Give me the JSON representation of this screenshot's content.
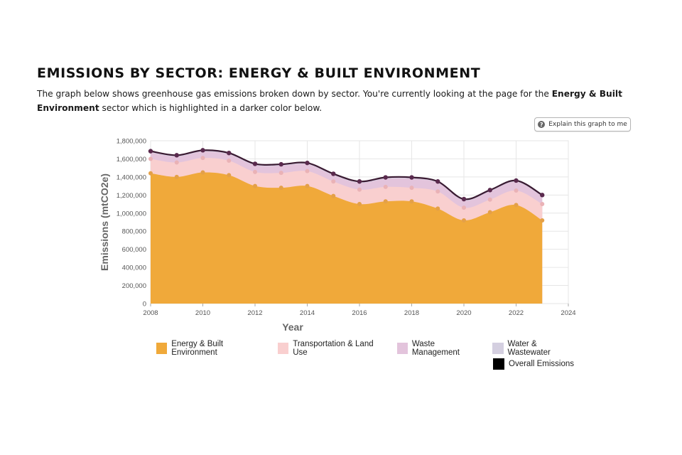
{
  "header": {
    "title": "EMISSIONS BY SECTOR: ENERGY & BUILT ENVIRONMENT",
    "desc_pre": "The graph below shows greenhouse gas emissions broken down by sector. You're currently looking at the page for the ",
    "desc_bold": "Energy & Built Environment",
    "desc_post": " sector which is highlighted in a darker color below."
  },
  "explain_button": {
    "label": "Explain this graph to me",
    "icon": "question-icon"
  },
  "chart_data": {
    "type": "area",
    "stacked": true,
    "xlabel": "Year",
    "ylabel": "Emissions (mtCO2e)",
    "xlim": [
      2008,
      2024
    ],
    "ylim": [
      0,
      1800000
    ],
    "xticks": [
      2008,
      2010,
      2012,
      2014,
      2016,
      2018,
      2020,
      2022,
      2024
    ],
    "yticks": [
      0,
      200000,
      400000,
      600000,
      800000,
      1000000,
      1200000,
      1400000,
      1600000,
      1800000
    ],
    "ytick_labels": [
      "0",
      "200,000",
      "400,000",
      "600,000",
      "800,000",
      "1,000,000",
      "1,200,000",
      "1,400,000",
      "1,600,000",
      "1,800,000"
    ],
    "grid": true,
    "x": [
      2008,
      2009,
      2010,
      2011,
      2012,
      2013,
      2014,
      2015,
      2016,
      2017,
      2018,
      2019,
      2020,
      2021,
      2022,
      2023
    ],
    "series": [
      {
        "name": "Energy & Built Environment",
        "color": "#f0a93a",
        "values": [
          1440000,
          1400000,
          1450000,
          1420000,
          1300000,
          1280000,
          1300000,
          1190000,
          1100000,
          1130000,
          1130000,
          1050000,
          920000,
          1010000,
          1090000,
          920000
        ]
      },
      {
        "name": "Transportation & Land Use",
        "color": "#f9cfcf",
        "values": [
          160000,
          160000,
          160000,
          160000,
          155000,
          165000,
          165000,
          160000,
          160000,
          160000,
          150000,
          190000,
          140000,
          140000,
          160000,
          180000
        ]
      },
      {
        "name": "Waste Management",
        "color": "#e3c4dc",
        "values": [
          70000,
          65000,
          70000,
          70000,
          75000,
          80000,
          75000,
          70000,
          75000,
          90000,
          100000,
          95000,
          80000,
          90000,
          95000,
          85000
        ]
      },
      {
        "name": "Water & Wastewater",
        "color": "#d4cfe0",
        "values": [
          15000,
          15000,
          15000,
          15000,
          15000,
          15000,
          15000,
          15000,
          15000,
          15000,
          15000,
          15000,
          15000,
          15000,
          15000,
          15000
        ]
      }
    ],
    "overall": {
      "name": "Overall Emissions",
      "color": "#3a1a32",
      "values": [
        1685000,
        1640000,
        1695000,
        1665000,
        1545000,
        1540000,
        1555000,
        1435000,
        1350000,
        1395000,
        1395000,
        1350000,
        1155000,
        1255000,
        1360000,
        1200000
      ]
    },
    "legend_position": "bottom"
  }
}
